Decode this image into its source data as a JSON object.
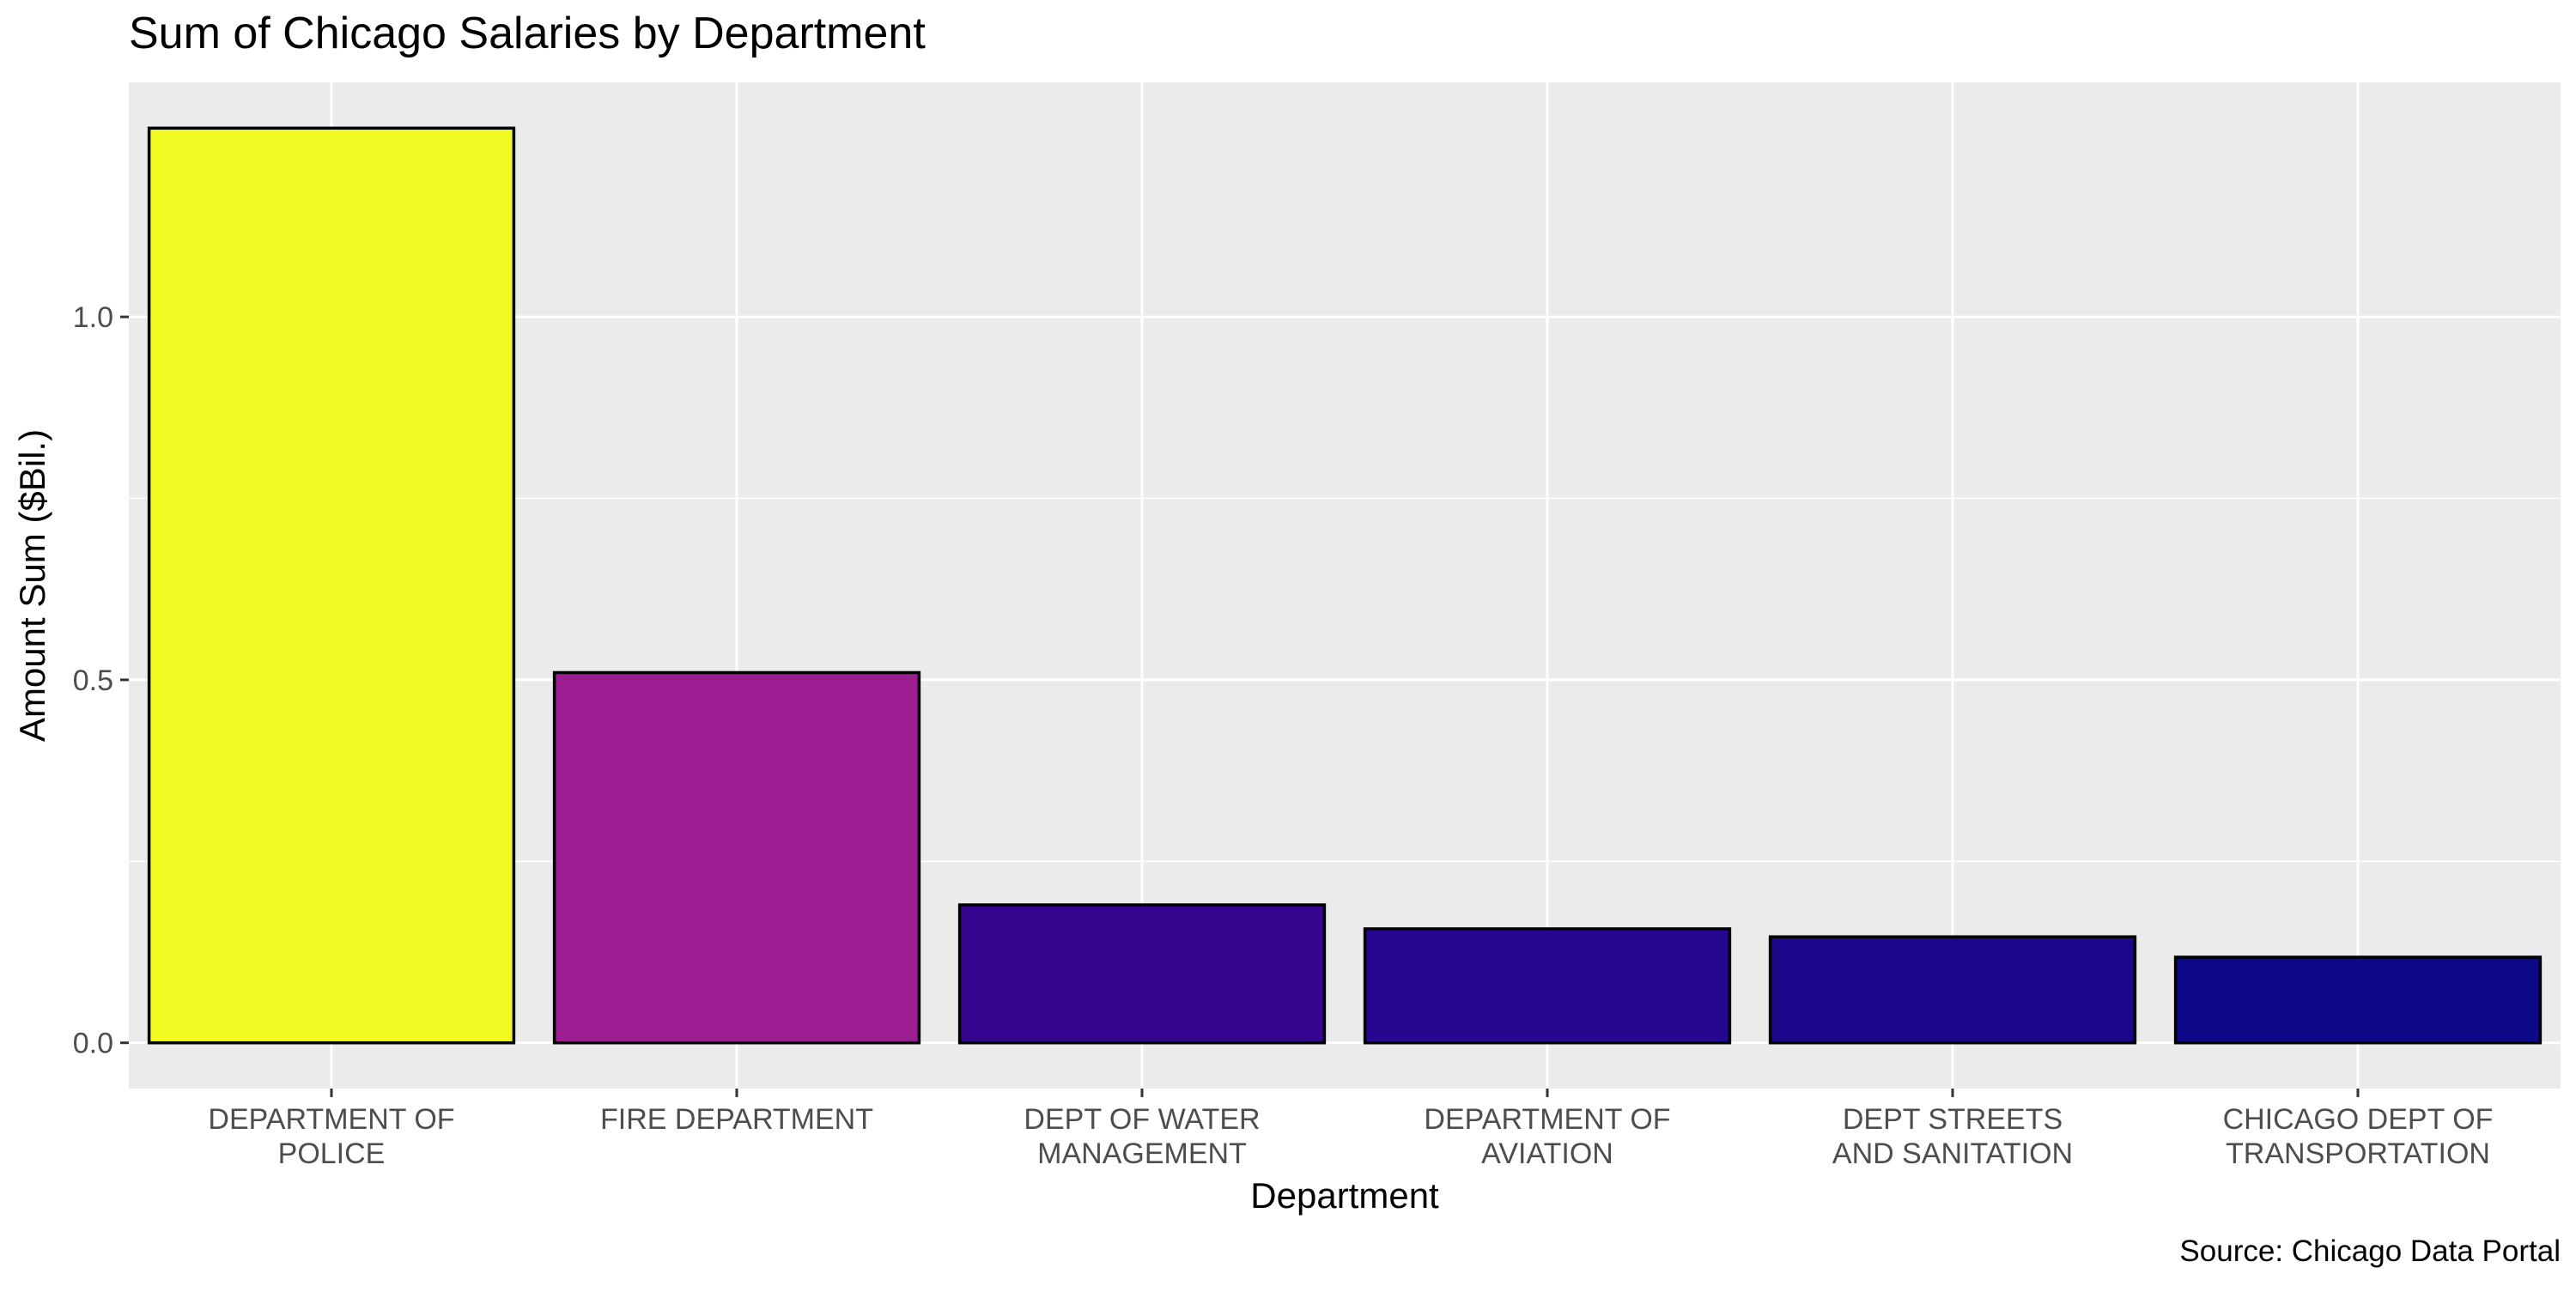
{
  "chart_data": {
    "type": "bar",
    "title": "Sum of Chicago Salaries by Department",
    "xlabel": "Department",
    "ylabel": "Amount Sum ($Bil.)",
    "caption": "Source: Chicago Data Portal",
    "categories": [
      [
        "DEPARTMENT OF",
        "POLICE"
      ],
      [
        "FIRE DEPARTMENT"
      ],
      [
        "DEPT OF WATER",
        "MANAGEMENT"
      ],
      [
        "DEPARTMENT OF",
        "AVIATION"
      ],
      [
        "DEPT STREETS",
        "AND SANITATION"
      ],
      [
        "CHICAGO DEPT OF",
        "TRANSPORTATION"
      ]
    ],
    "values": [
      1.26,
      0.51,
      0.19,
      0.157,
      0.146,
      0.118
    ],
    "colors": [
      "#F0F921",
      "#9C1D91",
      "#35068F",
      "#260890",
      "#1D0689",
      "#0D0887"
    ],
    "ylim": [
      -0.063,
      1.323
    ],
    "yticks": [
      0.0,
      0.5,
      1.0
    ],
    "ytick_labels": [
      "0.0",
      "0.5",
      "1.0"
    ],
    "grid": true,
    "legend": "none",
    "panel_color": "#EBEBEB",
    "grid_color": "#FFFFFF"
  }
}
